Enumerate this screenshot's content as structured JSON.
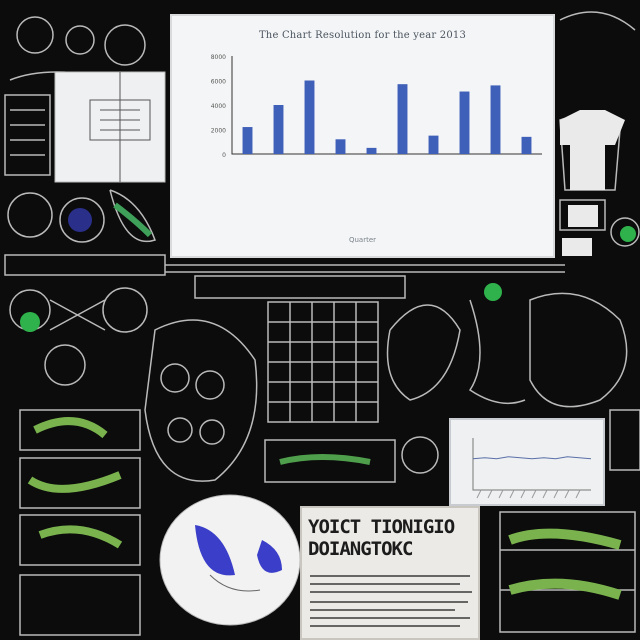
{
  "main_chart": {
    "title": "The Chart Resolution for the year 2013",
    "x_axis_title": "Quarter",
    "chart_data": {
      "type": "bar",
      "categories": [
        "",
        "",
        "",
        "",
        "",
        "",
        "",
        "",
        "",
        ""
      ],
      "values": [
        22,
        40,
        60,
        12,
        5,
        57,
        15,
        51,
        56,
        14
      ],
      "ylim": [
        0,
        80
      ],
      "yticks": [
        "0",
        "2000",
        "4000",
        "6000",
        "8000"
      ],
      "grid": false,
      "bar_color": "#3f60b8"
    }
  },
  "poster": {
    "title_line1": "YOICT TIONIGIO",
    "title_line2": "DOIANGTOKC"
  },
  "mini_chart": {
    "title": "",
    "chart_data": {
      "type": "line",
      "x": [
        0,
        1,
        2,
        3,
        4,
        5,
        6,
        7,
        8,
        9,
        10
      ],
      "y": [
        30,
        31,
        30,
        32,
        31,
        30,
        31,
        30,
        32,
        31,
        30
      ],
      "ylim": [
        0,
        50
      ]
    }
  },
  "colors": {
    "background": "#0b0c0b",
    "accent_green": "#2fb24c",
    "accent_blue": "#3a3ec8",
    "chalk": "#e6e6e6"
  }
}
